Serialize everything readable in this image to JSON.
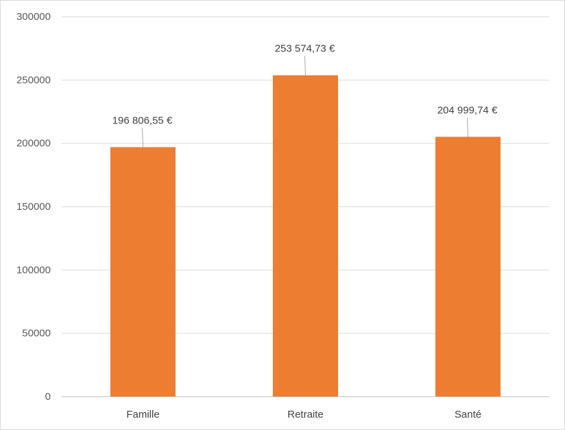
{
  "chart_data": {
    "type": "bar",
    "categories": [
      "Famille",
      "Retraite",
      "Santé"
    ],
    "values": [
      196806.55,
      253574.73,
      204999.74
    ],
    "data_labels": [
      "196 806,55 €",
      "253 574,73 €",
      "204 999,74 €"
    ],
    "yticks": [
      "0",
      "50000",
      "100000",
      "150000",
      "200000",
      "250000",
      "300000"
    ],
    "ylim": [
      0,
      300000
    ],
    "title": "",
    "xlabel": "",
    "ylabel": "",
    "grid": "horizontal",
    "legend": "none",
    "bar_color": "#ED7D31"
  }
}
